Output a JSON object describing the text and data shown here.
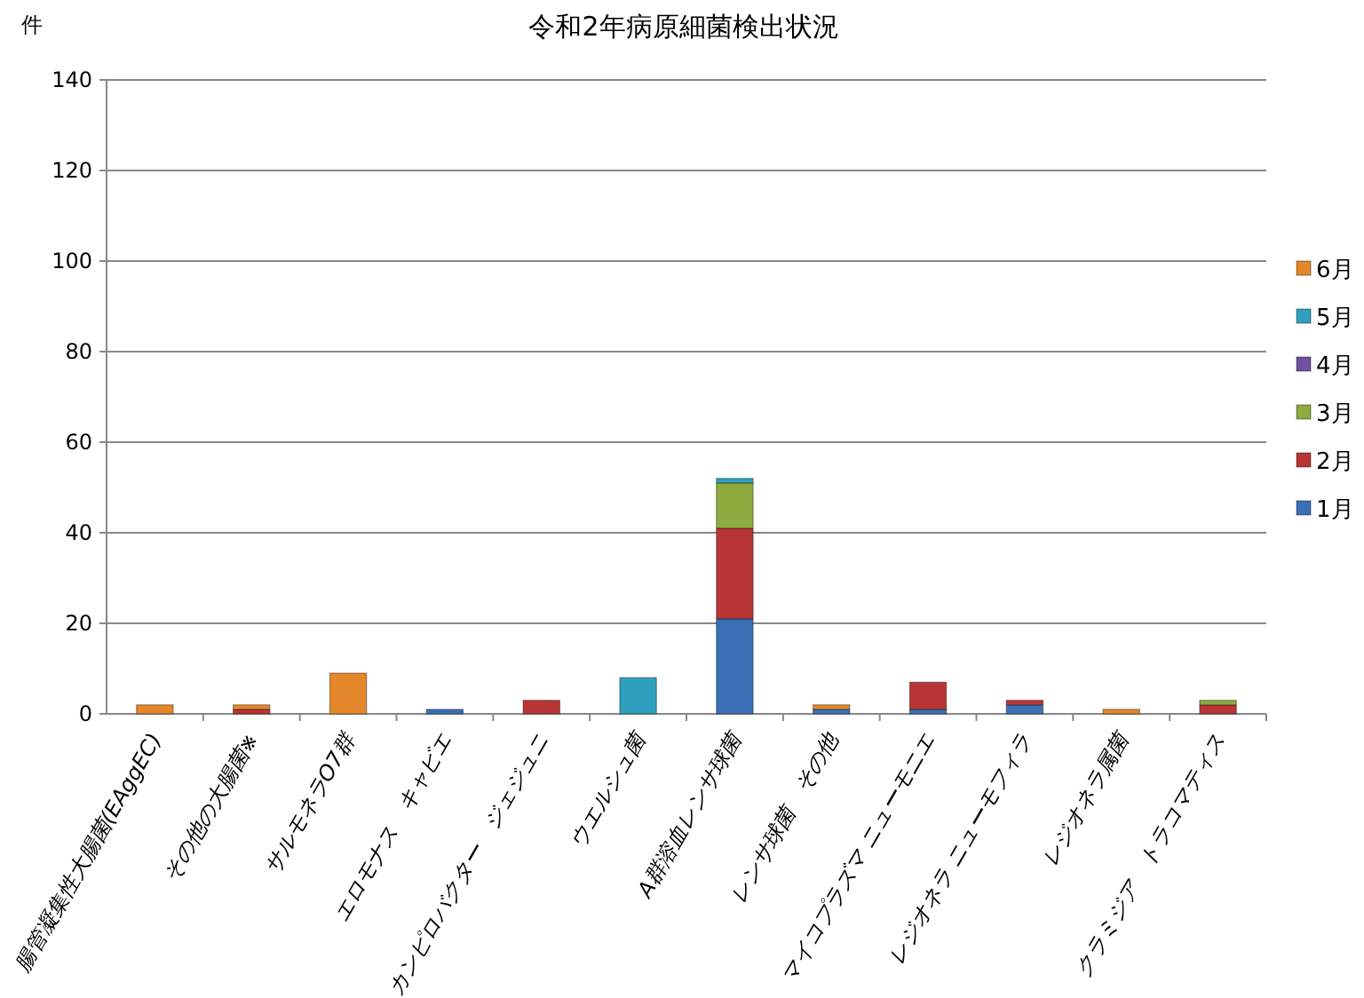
{
  "chart_data": {
    "type": "bar",
    "title": "令和2年病原細菌検出状況",
    "ylabel": "件",
    "stacked": true,
    "grid": "y",
    "legend": "right",
    "ylim": [
      0,
      140
    ],
    "yticks": [
      0,
      20,
      40,
      60,
      80,
      100,
      120,
      140
    ],
    "categories": [
      "腸管凝集性大腸菌(EAggEC)",
      "その他の大腸菌※",
      "サルモネラO7群",
      "エロモナス　キャビエ",
      "カンピロバクター　ジェジュニ",
      "ウエルシュ菌",
      "A群溶血レンサ球菌",
      "レンサ球菌　その他",
      "マイコプラズマ ニューモニエ",
      "レジオネラ ニューモフィラ",
      "レジオネラ属菌",
      "クラミジア　トラコマティス"
    ],
    "series": [
      {
        "name": "1月",
        "color": "#3b6fb6",
        "values": [
          0,
          0,
          0,
          1,
          0,
          0,
          21,
          1,
          1,
          2,
          0,
          0
        ]
      },
      {
        "name": "2月",
        "color": "#b83535",
        "values": [
          0,
          1,
          0,
          0,
          3,
          0,
          20,
          0,
          6,
          1,
          0,
          2
        ]
      },
      {
        "name": "3月",
        "color": "#8dab3e",
        "values": [
          0,
          0,
          0,
          0,
          0,
          0,
          10,
          0,
          0,
          0,
          0,
          1
        ]
      },
      {
        "name": "4月",
        "color": "#7150a0",
        "values": [
          0,
          0,
          0,
          0,
          0,
          0,
          0,
          0,
          0,
          0,
          0,
          0
        ]
      },
      {
        "name": "5月",
        "color": "#2fa0bd",
        "values": [
          0,
          0,
          0,
          0,
          0,
          8,
          1,
          0,
          0,
          0,
          0,
          0
        ]
      },
      {
        "name": "6月",
        "color": "#e3872a",
        "values": [
          2,
          1,
          9,
          0,
          0,
          0,
          0,
          1,
          0,
          0,
          1,
          0
        ]
      }
    ]
  }
}
